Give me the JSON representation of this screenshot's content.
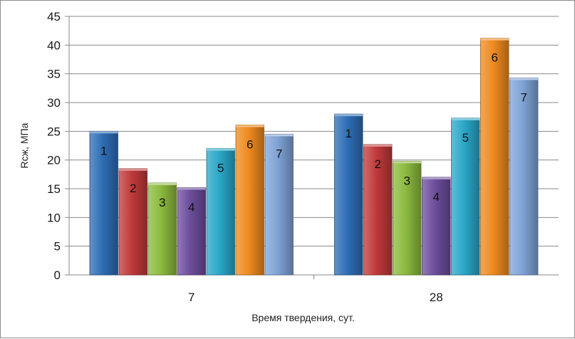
{
  "chart_data": {
    "type": "bar",
    "categories": [
      "7",
      "28"
    ],
    "series": [
      {
        "label": "1",
        "color": "#2e6db5",
        "values": [
          25,
          28
        ]
      },
      {
        "label": "2",
        "color": "#c0393a",
        "values": [
          18.5,
          22.7
        ]
      },
      {
        "label": "3",
        "color": "#8cba3e",
        "values": [
          16,
          19.8
        ]
      },
      {
        "label": "4",
        "color": "#6d4d9c",
        "values": [
          15.2,
          17
        ]
      },
      {
        "label": "5",
        "color": "#2aa7c8",
        "values": [
          22,
          27.3
        ]
      },
      {
        "label": "6",
        "color": "#ef8a1f",
        "values": [
          26.1,
          41.2
        ]
      },
      {
        "label": "7",
        "color": "#7fa3d6",
        "values": [
          24.5,
          34.3
        ]
      }
    ],
    "xlabel": "Время твердения, сут.",
    "ylabel": "Rсж, МПа",
    "ylim": [
      0,
      45
    ],
    "yticks": [
      0,
      5,
      10,
      15,
      20,
      25,
      30,
      35,
      40,
      45
    ],
    "grid": true,
    "legend": "none"
  }
}
